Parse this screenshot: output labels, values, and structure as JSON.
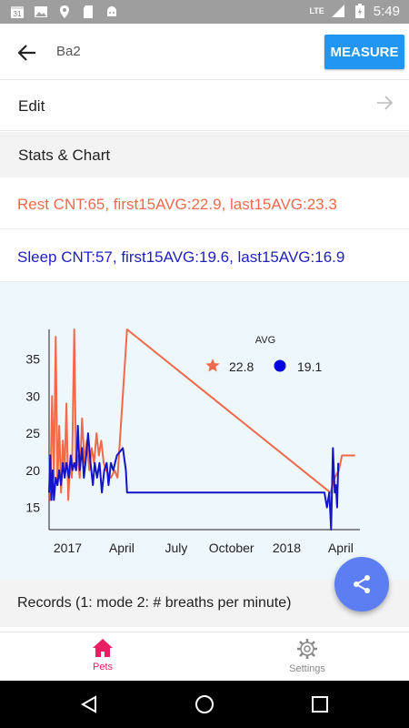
{
  "status_bar": {
    "calendar_day": "31",
    "network": "LTE",
    "time": "5:49"
  },
  "app_bar": {
    "title": "Ba2",
    "measure_label": "MEASURE"
  },
  "edit_row": {
    "label": "Edit"
  },
  "stats_section": {
    "label": "Stats & Chart"
  },
  "stats": {
    "rest": "Rest CNT:65, first15AVG:22.9, last15AVG:23.3",
    "sleep": "Sleep CNT:57, first15AVG:19.6, last15AVG:16.9"
  },
  "records_section": {
    "label": "Records (1: mode 2: # breaths per minute)"
  },
  "bottom_nav": {
    "pets_label": "Pets",
    "settings_label": "Settings"
  },
  "colors": {
    "rest": "#f06a4a",
    "sleep": "#1414c8",
    "accent": "#2196f3",
    "pets": "#e91e63",
    "fab": "#5c7ef2"
  },
  "chart_data": {
    "type": "line",
    "xlabel": "",
    "ylabel": "",
    "x_tick_labels": [
      "2017",
      "April",
      "July",
      "October",
      "2018",
      "April"
    ],
    "y_ticks": [
      15,
      20,
      25,
      30,
      35
    ],
    "ylim": [
      12,
      39
    ],
    "legend": {
      "title": "AVG",
      "placement": "top-right",
      "entries": [
        {
          "marker": "star",
          "value": "22.8"
        },
        {
          "marker": "circle",
          "value": "19.1"
        }
      ]
    },
    "series": [
      {
        "marker": "star",
        "color": "#f06a4a",
        "points": [
          [
            "2016-12-01",
            22
          ],
          [
            "2016-12-03",
            16
          ],
          [
            "2016-12-06",
            30
          ],
          [
            "2016-12-09",
            19
          ],
          [
            "2016-12-12",
            38
          ],
          [
            "2016-12-15",
            18
          ],
          [
            "2016-12-18",
            26
          ],
          [
            "2016-12-21",
            17
          ],
          [
            "2016-12-24",
            24
          ],
          [
            "2016-12-27",
            20
          ],
          [
            "2016-12-30",
            29
          ],
          [
            "2017-01-02",
            16
          ],
          [
            "2017-01-05",
            21
          ],
          [
            "2017-01-08",
            19
          ],
          [
            "2017-01-12",
            39
          ],
          [
            "2017-01-15",
            20
          ],
          [
            "2017-01-18",
            22
          ],
          [
            "2017-01-21",
            19
          ],
          [
            "2017-01-25",
            27
          ],
          [
            "2017-01-29",
            21
          ],
          [
            "2017-02-02",
            24
          ],
          [
            "2017-02-06",
            20
          ],
          [
            "2017-02-10",
            23
          ],
          [
            "2017-02-14",
            21
          ],
          [
            "2017-02-18",
            25
          ],
          [
            "2017-02-22",
            22
          ],
          [
            "2017-02-26",
            24
          ],
          [
            "2017-03-02",
            21
          ],
          [
            "2017-03-06",
            20
          ],
          [
            "2017-03-14",
            19
          ],
          [
            "2017-03-20",
            20
          ],
          [
            "2017-03-25",
            19
          ],
          [
            "2017-04-10",
            39
          ],
          [
            "2018-03-15",
            17
          ],
          [
            "2018-03-22",
            19
          ],
          [
            "2018-03-29",
            20
          ],
          [
            "2018-04-03",
            22
          ],
          [
            "2018-04-25",
            22
          ]
        ]
      },
      {
        "marker": "circle",
        "color": "#1414c8",
        "points": [
          [
            "2016-12-01",
            17
          ],
          [
            "2016-12-03",
            22
          ],
          [
            "2016-12-05",
            16
          ],
          [
            "2016-12-07",
            20
          ],
          [
            "2016-12-09",
            16
          ],
          [
            "2016-12-12",
            19
          ],
          [
            "2016-12-15",
            18
          ],
          [
            "2016-12-18",
            20
          ],
          [
            "2016-12-21",
            18
          ],
          [
            "2016-12-24",
            21
          ],
          [
            "2016-12-27",
            19
          ],
          [
            "2016-12-30",
            21
          ],
          [
            "2017-01-03",
            19
          ],
          [
            "2017-01-06",
            22
          ],
          [
            "2017-01-09",
            20
          ],
          [
            "2017-01-12",
            21
          ],
          [
            "2017-01-15",
            20
          ],
          [
            "2017-01-18",
            26
          ],
          [
            "2017-01-21",
            20
          ],
          [
            "2017-01-25",
            23
          ],
          [
            "2017-01-28",
            19
          ],
          [
            "2017-02-01",
            22
          ],
          [
            "2017-02-04",
            25
          ],
          [
            "2017-02-08",
            21
          ],
          [
            "2017-02-12",
            18
          ],
          [
            "2017-02-15",
            21
          ],
          [
            "2017-02-19",
            19
          ],
          [
            "2017-02-23",
            21
          ],
          [
            "2017-02-27",
            17
          ],
          [
            "2017-03-03",
            20
          ],
          [
            "2017-03-07",
            21
          ],
          [
            "2017-03-10",
            18
          ],
          [
            "2017-03-14",
            21
          ],
          [
            "2017-03-18",
            20
          ],
          [
            "2017-03-24",
            22
          ],
          [
            "2017-04-03",
            23
          ],
          [
            "2017-04-08",
            20
          ],
          [
            "2017-04-10",
            17
          ],
          [
            "2018-03-05",
            17
          ],
          [
            "2018-03-09",
            15
          ],
          [
            "2018-03-13",
            17
          ],
          [
            "2018-03-16",
            12
          ],
          [
            "2018-03-19",
            23
          ],
          [
            "2018-03-22",
            17
          ],
          [
            "2018-03-24",
            18
          ],
          [
            "2018-03-26",
            15
          ],
          [
            "2018-03-28",
            21
          ]
        ]
      }
    ]
  }
}
